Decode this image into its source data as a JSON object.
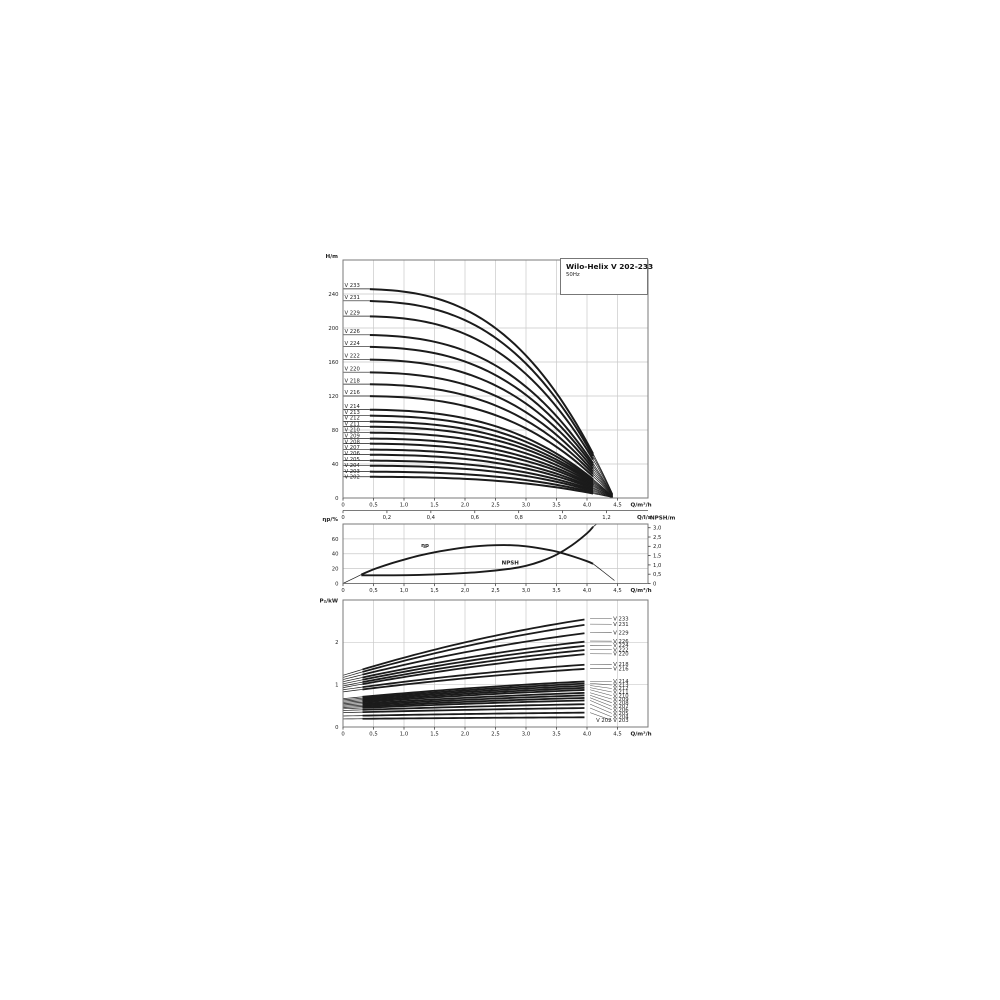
{
  "accent_color": "#1b1b1b",
  "grid_color": "#c9c9c9",
  "chart_data": [
    {
      "type": "line",
      "name": "head-flow-curves",
      "title": "Wilo-Helix V 202-233",
      "subtitle": "50Hz",
      "xlabel": "Q/m³/h",
      "xlabel2": "Q/l/s",
      "ylabel": "H/m",
      "xlim": [
        0,
        5
      ],
      "ylim": [
        0,
        280
      ],
      "x_ticks": [
        0,
        0.5,
        1,
        1.5,
        2,
        2.5,
        3,
        3.5,
        4,
        4.5
      ],
      "x_tick_labels": [
        "0",
        "0,5",
        "1,0",
        "1,5",
        "2,0",
        "2,5",
        "3,0",
        "3,5",
        "4,0",
        "4,5"
      ],
      "x2_ticks_ls": [
        0,
        0.2,
        0.4,
        0.6,
        0.8,
        1.0,
        1.2
      ],
      "x2_tick_labels": [
        "0",
        "0,2",
        "0,4",
        "0,6",
        "0,8",
        "1,0",
        "1,2"
      ],
      "y_ticks": [
        0,
        40,
        80,
        120,
        160,
        200,
        240
      ],
      "q_curve_end": 4.42,
      "series": [
        {
          "name": "V 233",
          "h0": 246
        },
        {
          "name": "V 231",
          "h0": 232
        },
        {
          "name": "V 229",
          "h0": 214
        },
        {
          "name": "V 226",
          "h0": 192
        },
        {
          "name": "V 224",
          "h0": 178
        },
        {
          "name": "V 222",
          "h0": 163
        },
        {
          "name": "V 220",
          "h0": 148
        },
        {
          "name": "V 218",
          "h0": 134
        },
        {
          "name": "V 216",
          "h0": 120
        },
        {
          "name": "V 214",
          "h0": 104
        },
        {
          "name": "V 213",
          "h0": 97
        },
        {
          "name": "V 212",
          "h0": 90
        },
        {
          "name": "V 211",
          "h0": 84
        },
        {
          "name": "V 210",
          "h0": 77
        },
        {
          "name": "V 209",
          "h0": 70
        },
        {
          "name": "V 208",
          "h0": 64
        },
        {
          "name": "V 207",
          "h0": 57
        },
        {
          "name": "V 206",
          "h0": 51
        },
        {
          "name": "V 205",
          "h0": 44
        },
        {
          "name": "V 204",
          "h0": 38
        },
        {
          "name": "V 203",
          "h0": 31
        },
        {
          "name": "V 202",
          "h0": 25
        }
      ]
    },
    {
      "type": "line",
      "name": "efficiency-npsh",
      "ylabel_left": "ηp/%",
      "ylabel_right": "NPSH/m",
      "xlabel": "Q/m³/h",
      "ylim_left": [
        0,
        80
      ],
      "ylim_right": [
        0,
        3.2
      ],
      "y_ticks_left": [
        0,
        20,
        40,
        60
      ],
      "y_ticks_right": [
        0,
        0.5,
        1,
        1.5,
        2,
        2.5,
        3
      ],
      "y_tick_labels_right": [
        "0",
        "0,5",
        "1,0",
        "1,5",
        "2,0",
        "2,5",
        "3,0"
      ],
      "x_ticks": [
        0,
        0.5,
        1,
        1.5,
        2,
        2.5,
        3,
        3.5,
        4,
        4.5
      ],
      "x_tick_labels": [
        "0",
        "0,5",
        "1,0",
        "1,5",
        "2,0",
        "2,5",
        "3,0",
        "3,5",
        "4,0",
        "4,5"
      ],
      "eta": {
        "label": "ηp",
        "thick_from": 0.3,
        "points": [
          [
            0,
            0
          ],
          [
            0.15,
            6
          ],
          [
            0.3,
            12
          ],
          [
            0.5,
            19
          ],
          [
            0.75,
            26
          ],
          [
            1,
            32
          ],
          [
            1.25,
            37.5
          ],
          [
            1.5,
            42
          ],
          [
            1.75,
            45.5
          ],
          [
            2,
            48.5
          ],
          [
            2.25,
            50.5
          ],
          [
            2.5,
            51.5
          ],
          [
            2.75,
            51.5
          ],
          [
            3,
            50
          ],
          [
            3.25,
            47
          ],
          [
            3.5,
            43
          ],
          [
            3.75,
            37
          ],
          [
            4,
            30
          ],
          [
            4.1,
            26.5
          ]
        ],
        "thin_tail": [
          [
            4.25,
            17
          ],
          [
            4.45,
            4
          ]
        ],
        "label_pos": [
          1.28,
          49
        ]
      },
      "npsh": {
        "label": "NPSH",
        "points": [
          [
            0.3,
            0.44
          ],
          [
            0.75,
            0.44
          ],
          [
            1.25,
            0.46
          ],
          [
            1.75,
            0.52
          ],
          [
            2.25,
            0.62
          ],
          [
            2.75,
            0.8
          ],
          [
            3,
            0.95
          ],
          [
            3.25,
            1.2
          ],
          [
            3.5,
            1.55
          ],
          [
            3.75,
            2.05
          ],
          [
            4,
            2.7
          ],
          [
            4.1,
            3.05
          ]
        ],
        "thin_tail": [
          [
            4.16,
            3.2
          ]
        ],
        "label_pos": [
          2.6,
          25.5
        ]
      }
    },
    {
      "type": "line",
      "name": "power-curves",
      "ylabel": "P₂/kW",
      "xlabel": "Q/m³/h",
      "ylim": [
        0,
        3
      ],
      "y_ticks": [
        0,
        1,
        2
      ],
      "x_ticks": [
        0,
        0.5,
        1,
        1.5,
        2,
        2.5,
        3,
        3.5,
        4,
        4.5
      ],
      "x_tick_labels": [
        "0",
        "0,5",
        "1,0",
        "1,5",
        "2,0",
        "2,5",
        "3,0",
        "3,5",
        "4,0",
        "4,5"
      ],
      "q_thick_end": 4.05,
      "series": [
        {
          "name": "V 233",
          "p0": 1.22,
          "p4": 2.56
        },
        {
          "name": "V 231",
          "p0": 1.17,
          "p4": 2.43
        },
        {
          "name": "V 229",
          "p0": 1.12,
          "p4": 2.23
        },
        {
          "name": "V 226",
          "p0": 1.07,
          "p4": 2.03
        },
        {
          "name": "V 224",
          "p0": 1.02,
          "p4": 1.93
        },
        {
          "name": "V 222",
          "p0": 0.97,
          "p4": 1.83
        },
        {
          "name": "V 220",
          "p0": 0.93,
          "p4": 1.73
        },
        {
          "name": "V 218",
          "p0": 0.88,
          "p4": 1.48
        },
        {
          "name": "V 216",
          "p0": 0.83,
          "p4": 1.38
        },
        {
          "name": "V 214",
          "p0": 0.67,
          "p4": 1.08
        },
        {
          "name": "V 213",
          "p0": 0.64,
          "p4": 1.03
        },
        {
          "name": "V 212",
          "p0": 0.61,
          "p4": 0.98
        },
        {
          "name": "V 211",
          "p0": 0.58,
          "p4": 0.93
        },
        {
          "name": "V 210",
          "p0": 0.55,
          "p4": 0.88
        },
        {
          "name": "V 209",
          "p0": 0.52,
          "p4": 0.81
        },
        {
          "name": "V 208",
          "p0": 0.49,
          "p4": 0.75
        },
        {
          "name": "V 207",
          "p0": 0.46,
          "p4": 0.69
        },
        {
          "name": "V 206",
          "p0": 0.43,
          "p4": 0.63
        },
        {
          "name": "V 205",
          "p0": 0.39,
          "p4": 0.54
        },
        {
          "name": "V 204",
          "p0": 0.34,
          "p4": 0.45
        },
        {
          "name": "V 203",
          "p0": 0.26,
          "p4": 0.34
        },
        {
          "name": "V 202",
          "p0": 0.19,
          "p4": 0.23
        }
      ]
    }
  ]
}
